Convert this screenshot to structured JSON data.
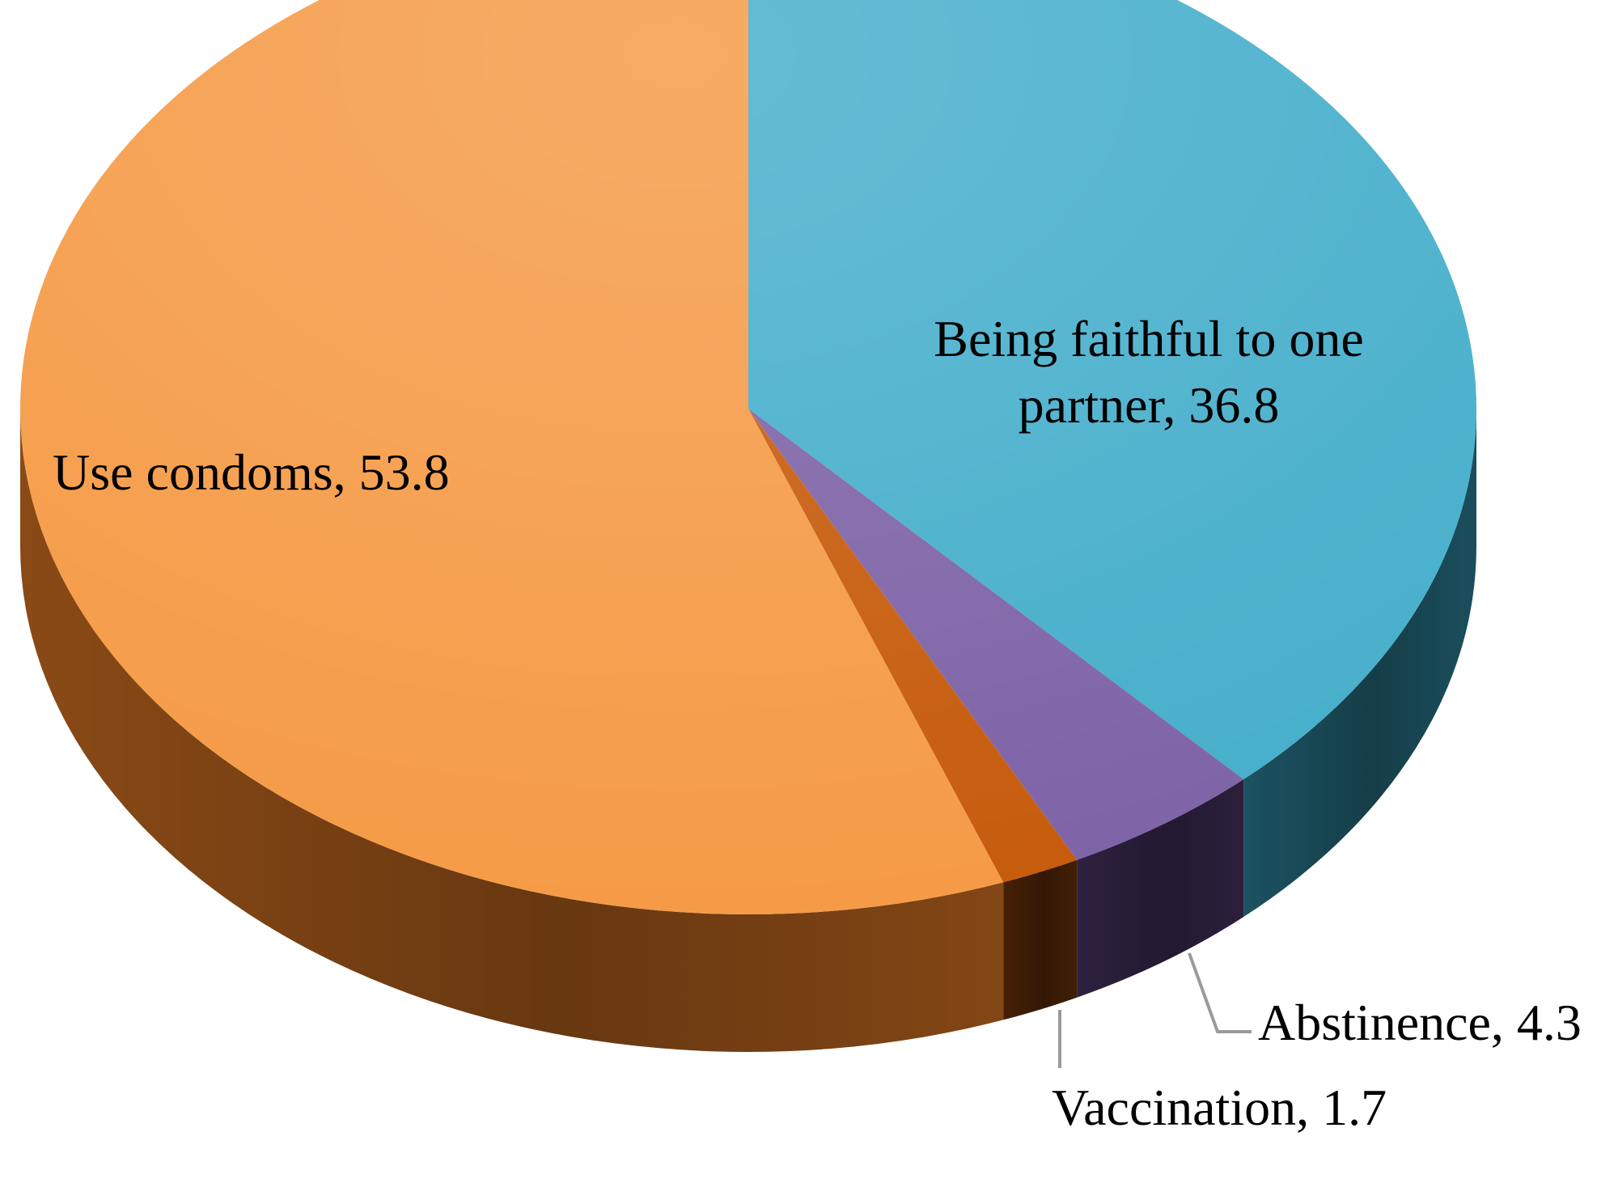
{
  "chart_data": {
    "type": "pie",
    "style": "3d",
    "slices": [
      {
        "label": "Being faithful to one partner",
        "value": 36.8,
        "display": "Being faithful to one partner, 36.8",
        "lines": [
          "Being faithful to one",
          "partner, 36.8"
        ],
        "color_top": "#45AECB",
        "color_side": "#1C5261"
      },
      {
        "label": "Abstinence",
        "value": 4.3,
        "display": "Abstinence, 4.3",
        "lines": [
          "Abstinence, 4.3"
        ],
        "color_top": "#7D62A6",
        "color_side": "#2E2140"
      },
      {
        "label": "Vaccination",
        "value": 1.7,
        "display": "Vaccination, 1.7",
        "lines": [
          "Vaccination, 1.7"
        ],
        "color_top": "#C65A0A",
        "color_side": "#452006"
      },
      {
        "label": "Use condoms",
        "value": 53.8,
        "display": "Use condoms, 53.8",
        "lines": [
          "Use condoms, 53.8"
        ],
        "color_top": "#F59A45",
        "color_side": "#8A4A16"
      }
    ]
  }
}
